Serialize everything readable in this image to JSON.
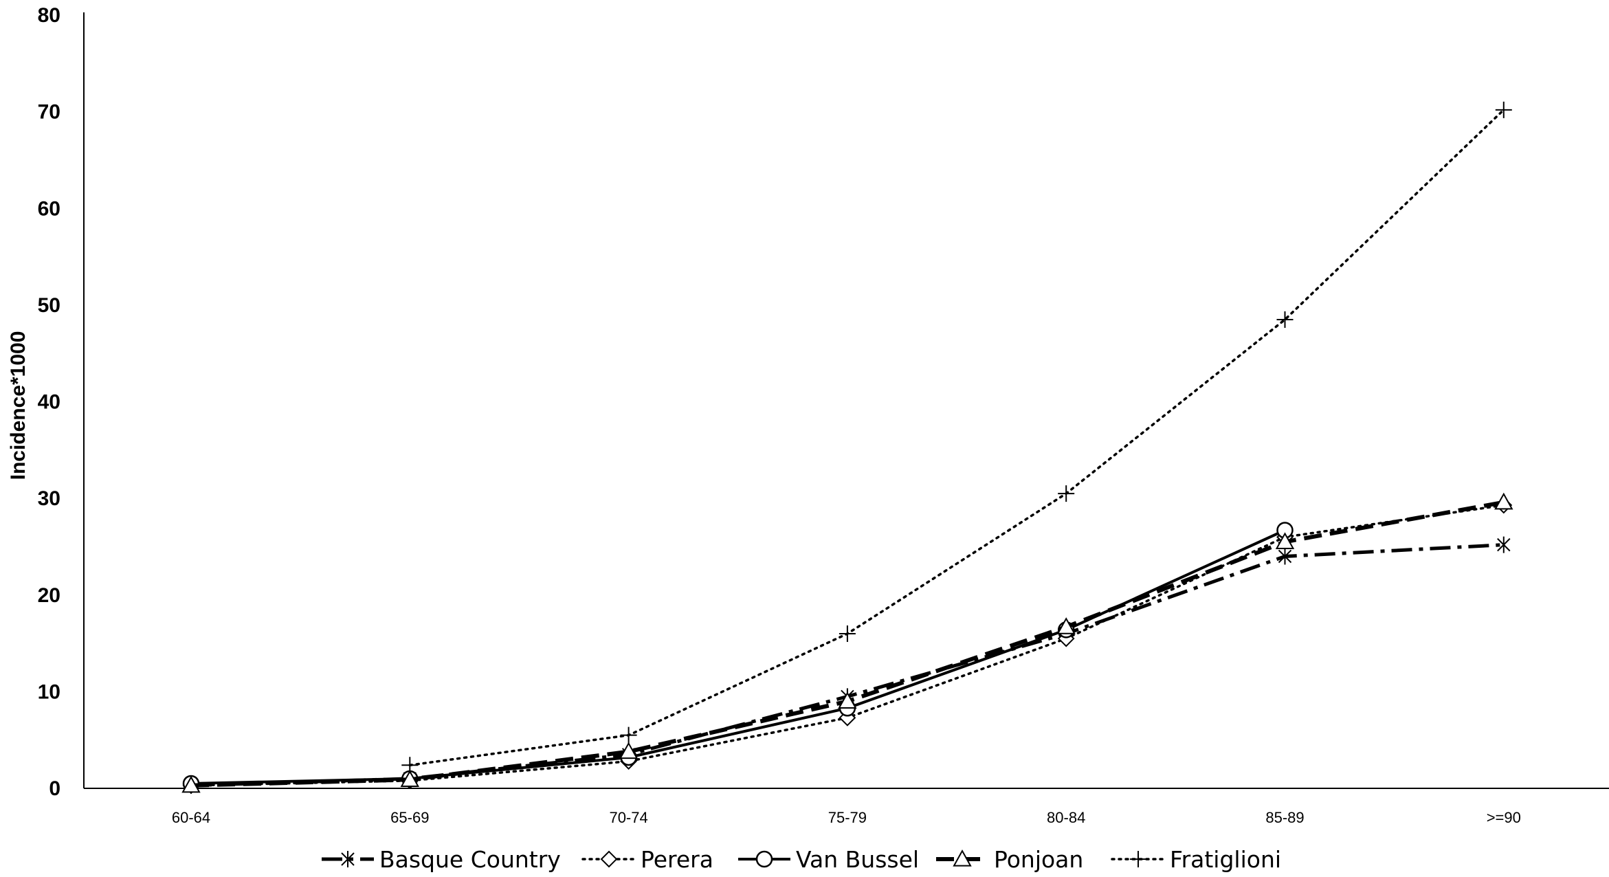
{
  "chart_data": {
    "type": "line",
    "title": "",
    "xlabel": "",
    "ylabel": "Incidence*1000",
    "ylim": [
      0,
      80
    ],
    "yticks": [
      "0",
      "10",
      "20",
      "30",
      "40",
      "50",
      "60",
      "70",
      "80"
    ],
    "categories": [
      "60-64",
      "65-69",
      "70-74",
      "75-79",
      "80-84",
      "85-89",
      ">=90"
    ],
    "grid": false,
    "legend_position": "bottom",
    "series": [
      {
        "name": "Basque Country",
        "marker": "asterisk",
        "line_style": "long-dash-dot",
        "color": "#000000",
        "values": [
          0.3,
          1.0,
          3.5,
          9.5,
          16.0,
          24.0,
          25.2
        ]
      },
      {
        "name": "Perera",
        "marker": "diamond",
        "line_style": "dotted",
        "color": "#000000",
        "values": [
          0.3,
          0.8,
          2.8,
          7.3,
          15.5,
          26.0,
          29.3
        ]
      },
      {
        "name": "Van Bussel",
        "marker": "circle",
        "line_style": "solid",
        "color": "#000000",
        "values": [
          0.5,
          1.0,
          3.2,
          8.3,
          16.4,
          26.7,
          null
        ]
      },
      {
        "name": "Ponjoan",
        "marker": "triangle",
        "line_style": "dashed",
        "color": "#000000",
        "values": [
          0.3,
          0.9,
          3.8,
          9.0,
          16.7,
          25.5,
          29.6
        ]
      },
      {
        "name": "Fratiglioni",
        "marker": "plus",
        "line_style": "dotted",
        "color": "#000000",
        "values": [
          null,
          2.4,
          5.5,
          16.0,
          30.5,
          48.5,
          70.2
        ]
      }
    ]
  }
}
